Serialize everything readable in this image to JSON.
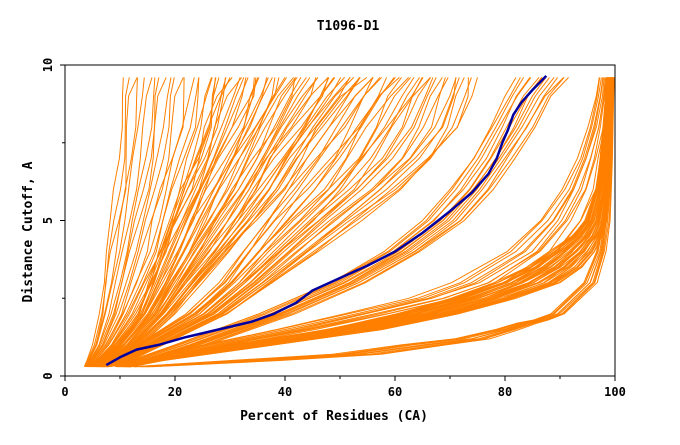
{
  "chart_data": {
    "type": "line",
    "title": "T1096-D1",
    "xlabel": "Percent of Residues (CA)",
    "ylabel": "Distance Cutoff, A",
    "xlim": [
      0,
      100
    ],
    "ylim": [
      0,
      10
    ],
    "x_ticks": [
      "0",
      "20",
      "40",
      "60",
      "80",
      "100"
    ],
    "y_ticks": [
      "0",
      "5",
      "10"
    ],
    "x_tick_values": [
      0,
      20,
      40,
      60,
      80,
      100
    ],
    "y_tick_values": [
      0,
      5,
      10
    ],
    "grid": false,
    "legend": "none",
    "colors": {
      "models": "#ff8000",
      "highlight": "#0000a0",
      "axes": "#000000"
    },
    "y_max_shown": 9.6,
    "highlight_series": {
      "x": [
        7.5,
        10,
        13,
        17,
        22,
        28,
        34,
        38,
        42,
        45,
        50,
        55,
        60,
        65,
        70,
        74,
        77,
        78.5,
        79.5,
        80.5,
        81.5,
        83,
        85,
        87.5
      ],
      "y": [
        0.35,
        0.6,
        0.85,
        1.0,
        1.25,
        1.5,
        1.75,
        2.0,
        2.35,
        2.75,
        3.15,
        3.55,
        4.0,
        4.6,
        5.3,
        5.9,
        6.5,
        7.0,
        7.5,
        7.9,
        8.4,
        8.8,
        9.2,
        9.65
      ]
    },
    "model_groups": [
      {
        "count": 20,
        "y": [
          0.3,
          0.5,
          1.0,
          2.0,
          3.0,
          4.0,
          5.0,
          6.0,
          7.0,
          8.0,
          9.0,
          9.6
        ],
        "x0": [
          3.5,
          4.0,
          5.0,
          6.0,
          6.8,
          7.5,
          8.2,
          8.8,
          9.3,
          9.8,
          10.3,
          10.6
        ],
        "x1": [
          4.5,
          6.0,
          9.0,
          13.0,
          16.0,
          19.0,
          21.0,
          23.0,
          25.0,
          27.0,
          28.0,
          29.0
        ]
      },
      {
        "count": 45,
        "y": [
          0.3,
          0.5,
          1.0,
          2.0,
          3.0,
          4.0,
          5.0,
          6.0,
          7.0,
          8.0,
          9.0,
          9.6
        ],
        "x0": [
          4.0,
          6.0,
          9.0,
          13.0,
          15.0,
          17.0,
          19.0,
          21.0,
          23.0,
          25.0,
          27.0,
          28.0
        ],
        "x1": [
          6.0,
          9.0,
          14.0,
          20.0,
          25.0,
          30.0,
          35.0,
          40.0,
          44.0,
          48.0,
          52.0,
          55.0
        ]
      },
      {
        "count": 30,
        "y": [
          0.3,
          0.5,
          1.0,
          2.0,
          3.0,
          4.0,
          5.0,
          6.0,
          7.0,
          8.0,
          9.0,
          9.6
        ],
        "x0": [
          5.0,
          8.0,
          13.0,
          22.0,
          28.0,
          32.0,
          36.0,
          40.0,
          44.0,
          48.0,
          52.0,
          55.0
        ],
        "x1": [
          7.0,
          12.0,
          18.0,
          30.0,
          38.0,
          46.0,
          54.0,
          62.0,
          68.0,
          72.0,
          74.0,
          75.0
        ]
      },
      {
        "count": 15,
        "y": [
          0.3,
          0.5,
          1.0,
          2.0,
          3.0,
          4.0,
          5.0,
          6.0,
          7.0,
          8.0,
          9.0,
          9.6
        ],
        "x0": [
          6.0,
          12.0,
          20.0,
          35.0,
          48.0,
          58.0,
          65.0,
          70.0,
          74.0,
          77.0,
          80.0,
          82.0
        ],
        "x1": [
          8.0,
          16.0,
          26.0,
          42.0,
          55.0,
          65.0,
          73.0,
          78.0,
          82.0,
          86.0,
          89.0,
          92.0
        ]
      },
      {
        "count": 12,
        "y": [
          0.3,
          0.5,
          1.0,
          1.5,
          2.0,
          2.5,
          3.0,
          4.0,
          5.0,
          6.0,
          7.0,
          8.0,
          9.0,
          9.6
        ],
        "x0": [
          9.0,
          14.0,
          25.0,
          38.0,
          50.0,
          62.0,
          70.0,
          80.0,
          86.0,
          90.0,
          93.0,
          95.0,
          96.5,
          97.0
        ],
        "x1": [
          11.0,
          18.0,
          32.0,
          48.0,
          62.0,
          74.0,
          82.0,
          90.0,
          94.0,
          96.5,
          97.5,
          98.5,
          99.0,
          99.3
        ]
      },
      {
        "count": 45,
        "y": [
          0.3,
          0.5,
          1.0,
          1.5,
          2.0,
          2.5,
          3.0,
          3.5,
          4.0,
          4.5,
          5.0,
          6.0,
          7.0,
          8.0,
          9.0,
          9.6
        ],
        "x0": [
          10.0,
          14.0,
          30.0,
          48.0,
          60.0,
          70.0,
          78.0,
          84.0,
          88.0,
          92.0,
          94.5,
          96.5,
          97.3,
          97.8,
          98.2,
          98.4
        ],
        "x1": [
          12.0,
          18.0,
          38.0,
          58.0,
          72.0,
          82.0,
          90.0,
          94.0,
          96.5,
          97.8,
          98.5,
          99.0,
          99.3,
          99.5,
          99.7,
          99.8
        ]
      },
      {
        "count": 10,
        "y": [
          0.3,
          0.5,
          0.7,
          1.0,
          1.2,
          1.5,
          1.7,
          1.8,
          2.0,
          3.0,
          4.0,
          5.0,
          6.0,
          7.0,
          8.0,
          9.0,
          9.6
        ],
        "x0": [
          12.0,
          30.0,
          48.0,
          60.0,
          70.0,
          78.0,
          82.0,
          85.0,
          88.0,
          94.0,
          96.5,
          97.5,
          98.2,
          98.6,
          98.9,
          99.1,
          99.2
        ],
        "x1": [
          16.0,
          40.0,
          58.0,
          70.0,
          78.0,
          83.0,
          86.0,
          88.0,
          91.0,
          97.0,
          98.5,
          99.2,
          99.4,
          99.6,
          99.7,
          99.8,
          99.9
        ]
      }
    ]
  }
}
